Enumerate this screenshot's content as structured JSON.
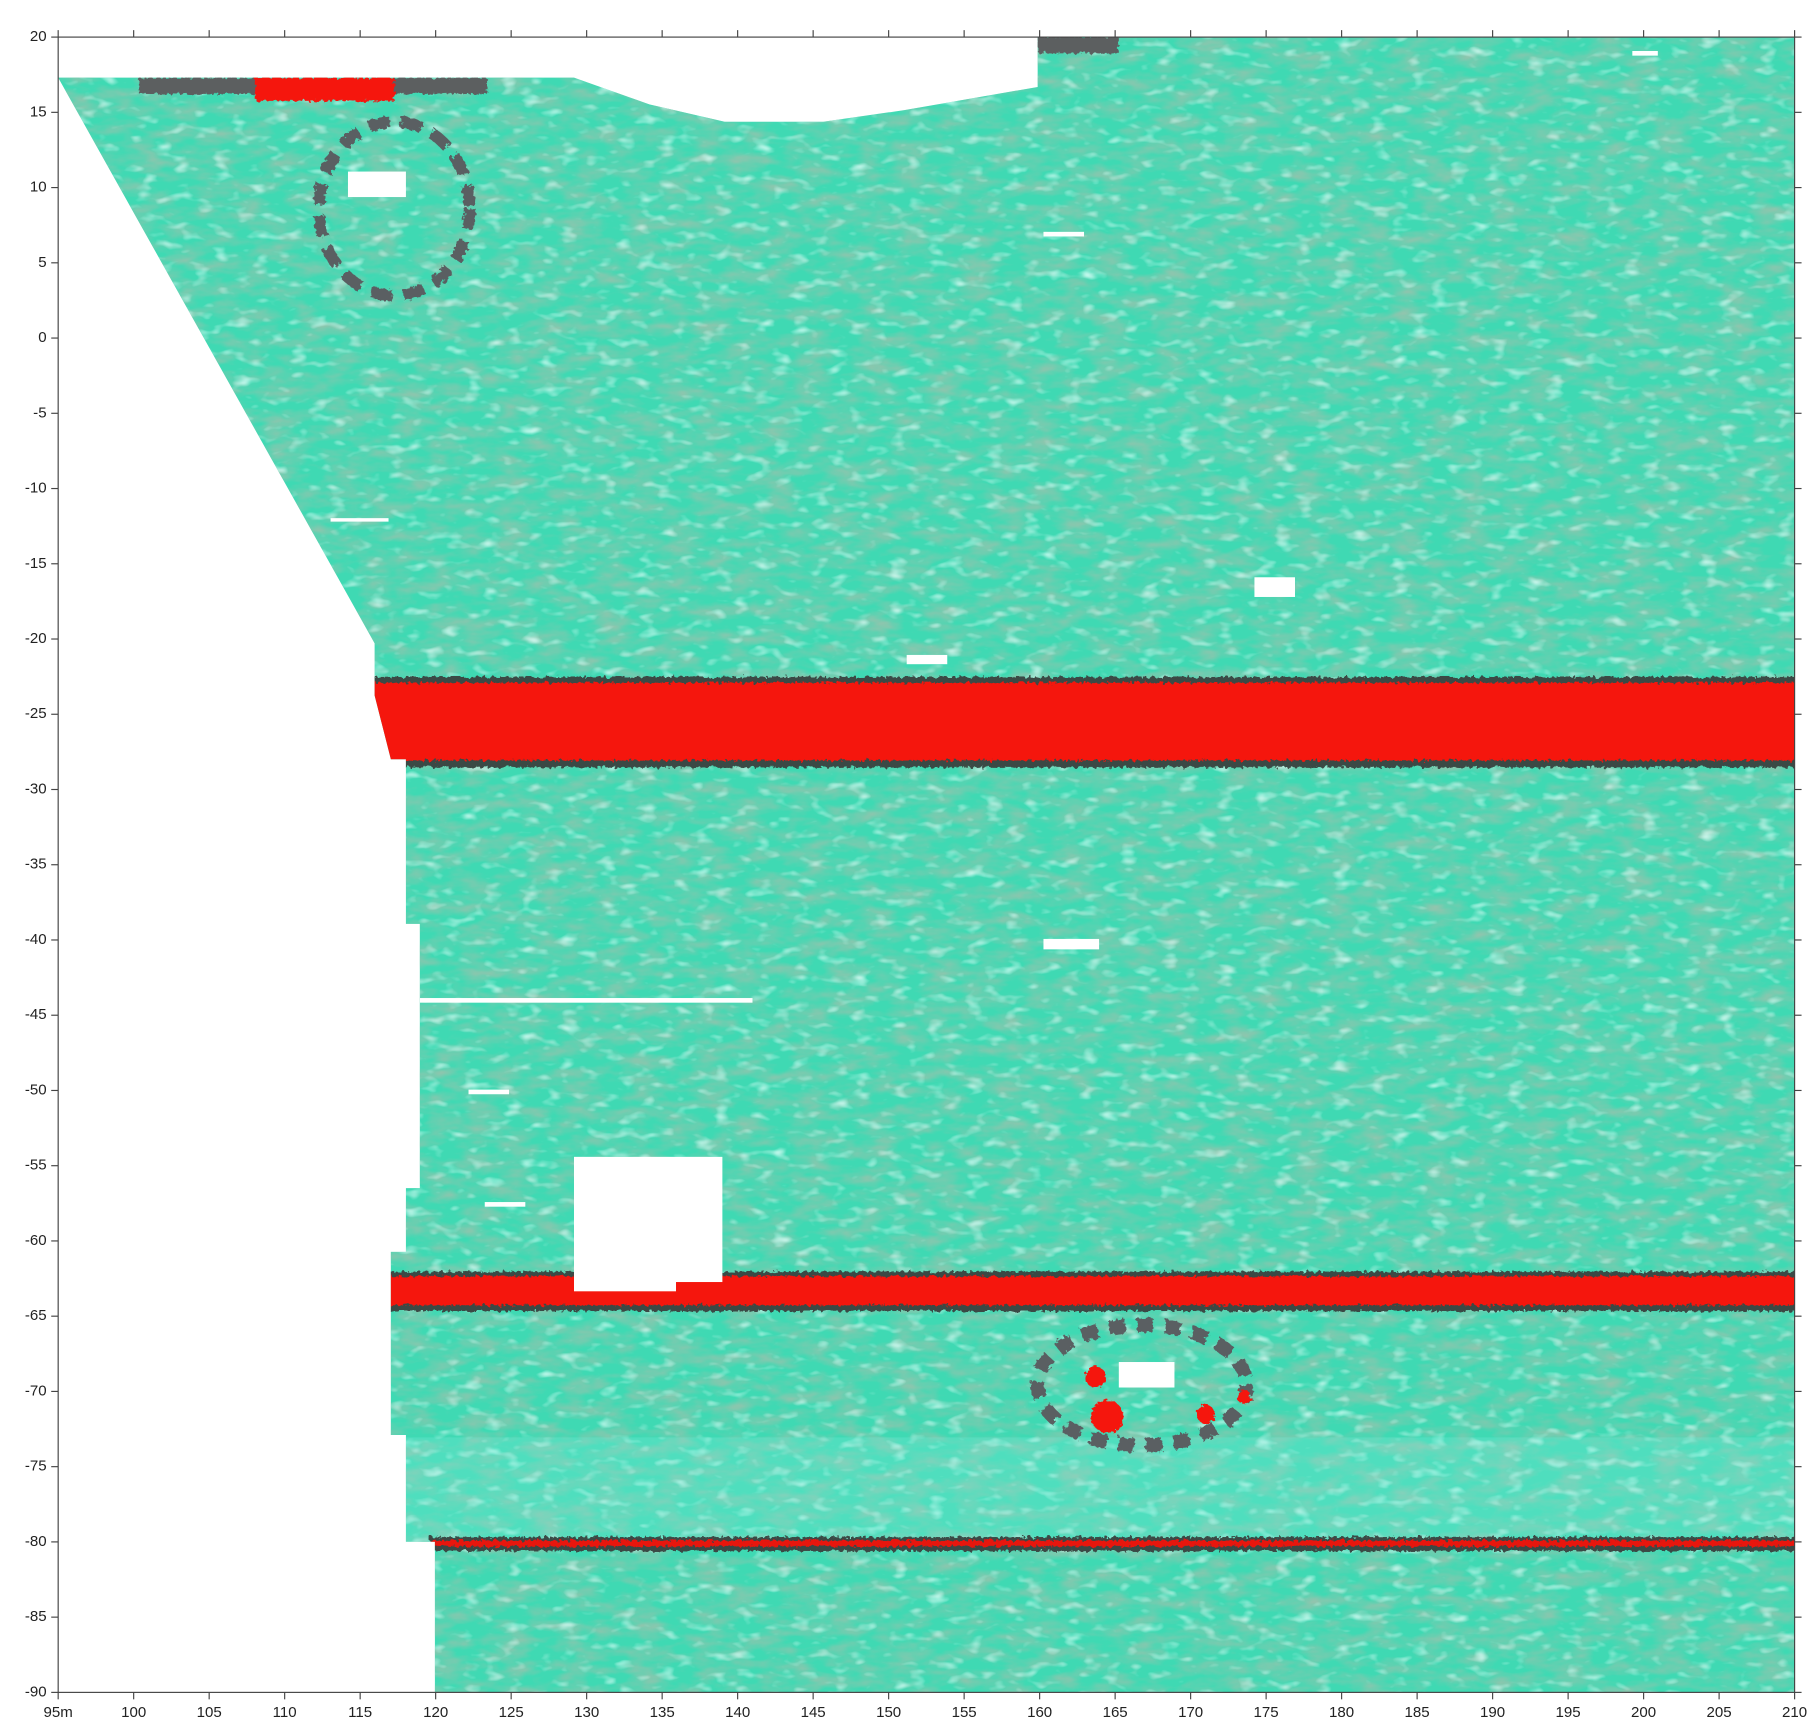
{
  "chart_data": {
    "type": "heatmap",
    "xlim": [
      95,
      210
    ],
    "ylim": [
      -90,
      20
    ],
    "xticks": [
      {
        "value": 95,
        "label": "95m"
      },
      100,
      105,
      110,
      115,
      120,
      125,
      130,
      135,
      140,
      145,
      150,
      155,
      160,
      165,
      170,
      175,
      180,
      185,
      190,
      195,
      200,
      205,
      210
    ],
    "yticks": [
      20,
      15,
      10,
      5,
      0,
      -5,
      -10,
      -15,
      -20,
      -25,
      -30,
      -35,
      -40,
      -45,
      -50,
      -55,
      -60,
      -65,
      -70,
      -75,
      -80,
      -85,
      -90
    ]
  }
}
